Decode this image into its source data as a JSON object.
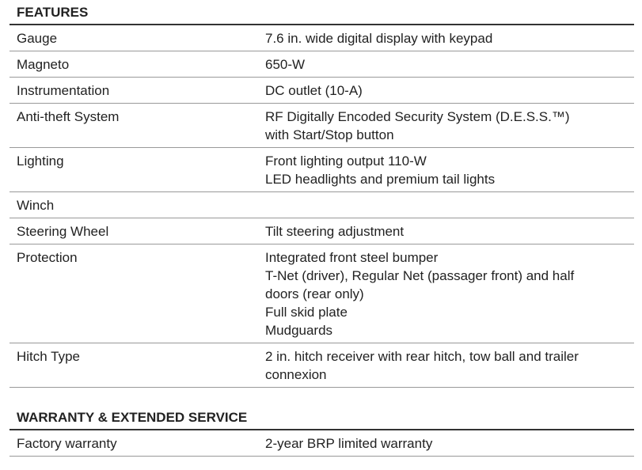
{
  "sections": [
    {
      "title": "FEATURES",
      "rows": [
        {
          "label": "Gauge",
          "lines": [
            "7.6 in. wide digital display with keypad"
          ]
        },
        {
          "label": "Magneto",
          "lines": [
            "650-W"
          ]
        },
        {
          "label": "Instrumentation",
          "lines": [
            "DC outlet (10-A)"
          ]
        },
        {
          "label": "Anti-theft System",
          "lines": [
            "RF Digitally Encoded Security System (D.E.S.S.™)",
            "with Start/Stop button"
          ]
        },
        {
          "label": "Lighting",
          "lines": [
            "Front lighting output 110-W",
            "LED headlights and premium tail lights"
          ]
        },
        {
          "label": "Winch",
          "lines": []
        },
        {
          "label": "Steering Wheel",
          "lines": [
            "Tilt steering adjustment"
          ]
        },
        {
          "label": "Protection",
          "lines": [
            "Integrated front steel bumper",
            "T-Net (driver), Regular Net (passager front) and half",
            "doors (rear only)",
            "Full skid plate",
            "Mudguards"
          ]
        },
        {
          "label": "Hitch Type",
          "lines": [
            "2 in. hitch receiver with rear hitch, tow ball and trailer",
            "connexion"
          ]
        }
      ]
    },
    {
      "title": "WARRANTY & EXTENDED SERVICE",
      "rows": [
        {
          "label": "Factory  warranty",
          "lines": [
            "2-year BRP limited warranty"
          ]
        }
      ]
    }
  ]
}
